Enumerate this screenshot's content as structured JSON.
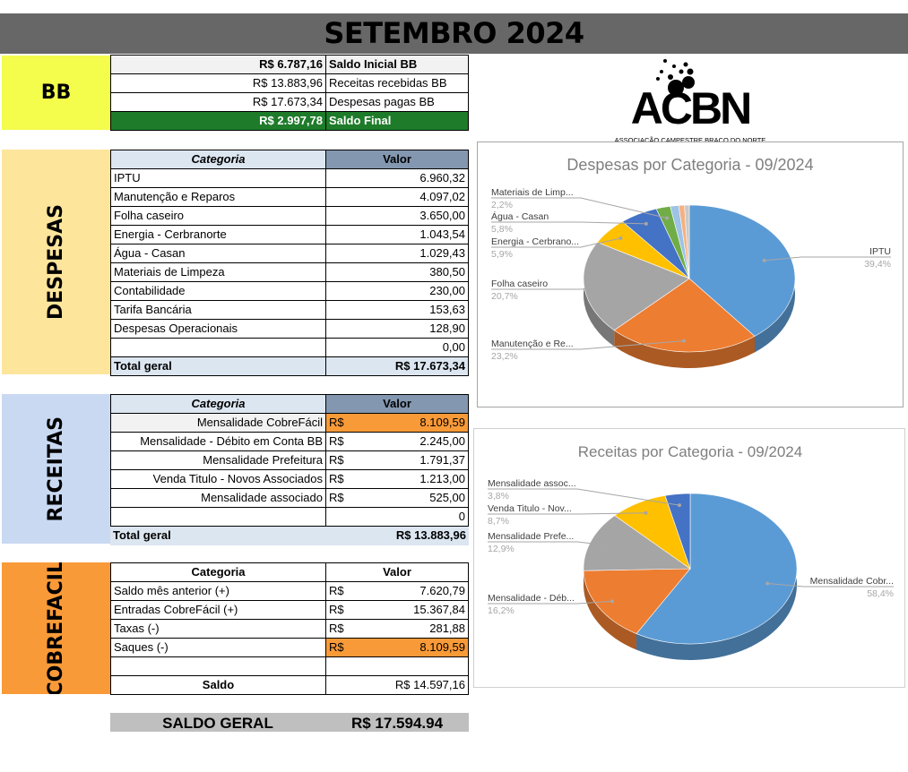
{
  "title": "SETEMBRO 2024",
  "bb": {
    "label": "BB",
    "rows": [
      {
        "value": "R$ 6.787,16",
        "label": "Saldo Inicial BB"
      },
      {
        "value": "R$ 13.883,96",
        "label": "Receitas recebidas BB"
      },
      {
        "value": "R$ 17.673,34",
        "label": "Despesas pagas BB"
      },
      {
        "value": "R$ 2.997,78",
        "label": "Saldo Final"
      }
    ]
  },
  "logo": {
    "text": "ACBN",
    "subtitle": "ASSOCIAÇÃO CAMPESTRE BRAÇO DO NORTE"
  },
  "despesas": {
    "label": "DESPESAS",
    "col_category": "Categoria",
    "col_value": "Valor",
    "rows": [
      {
        "cat": "IPTU",
        "val": "6.960,32"
      },
      {
        "cat": "Manutenção e Reparos",
        "val": "4.097,02"
      },
      {
        "cat": "Folha caseiro",
        "val": "3.650,00"
      },
      {
        "cat": "Energia - Cerbranorte",
        "val": "1.043,54"
      },
      {
        "cat": "Água - Casan",
        "val": "1.029,43"
      },
      {
        "cat": "Materiais de Limpeza",
        "val": "380,50"
      },
      {
        "cat": "Contabilidade",
        "val": "230,00"
      },
      {
        "cat": "Tarifa Bancária",
        "val": "153,63"
      },
      {
        "cat": "Despesas Operacionais",
        "val": "128,90"
      },
      {
        "cat": "",
        "val": "0,00"
      }
    ],
    "total_label": "Total geral",
    "total": "R$ 17.673,34"
  },
  "receitas": {
    "label": "RECEITAS",
    "col_category": "Categoria",
    "col_value": "Valor",
    "currency": "R$",
    "rows": [
      {
        "cat": "Mensalidade CobreFácil",
        "cur": "R$",
        "val": "8.109,59"
      },
      {
        "cat": "Mensalidade - Débito em Conta BB",
        "cur": "R$",
        "val": "2.245,00"
      },
      {
        "cat": "Mensalidade Prefeitura",
        "cur": "R$",
        "val": "1.791,37"
      },
      {
        "cat": "Venda Titulo - Novos Associados",
        "cur": "R$",
        "val": "1.213,00"
      },
      {
        "cat": "Mensalidade associado",
        "cur": "R$",
        "val": "525,00"
      },
      {
        "cat": "",
        "cur": "",
        "val": "0"
      }
    ],
    "total_label": "Total geral",
    "total": "R$ 13.883,96"
  },
  "cobrefacil": {
    "label": "COBREFACIL",
    "col_category": "Categoria",
    "col_value": "Valor",
    "rows": [
      {
        "cat": "Saldo mês anterior (+)",
        "cur": "R$",
        "val": "7.620,79"
      },
      {
        "cat": "Entradas CobreFácil (+)",
        "cur": "R$",
        "val": "15.367,84"
      },
      {
        "cat": "Taxas (-)",
        "cur": "R$",
        "val": "281,88"
      },
      {
        "cat": "Saques (-)",
        "cur": "R$",
        "val": "8.109,59"
      },
      {
        "cat": "",
        "cur": "",
        "val": ""
      }
    ],
    "saldo_label": "Saldo",
    "saldo": "R$ 14.597,16"
  },
  "saldo_geral": {
    "label": "SALDO GERAL",
    "value": "R$ 17.594.94"
  },
  "colors": {
    "bb": "#f4fc4c",
    "despesas": "#fde59c",
    "receitas": "#c9d9f2",
    "cobrefacil": "#f99a38",
    "saldo_final": "#1e7b2a",
    "title_bar": "#676767"
  },
  "chart_data": [
    {
      "type": "pie",
      "title": "Despesas por Categoria - 09/2024",
      "categories": [
        "IPTU",
        "Manutenção e Reparos",
        "Folha caseiro",
        "Energia - Cerbranorte",
        "Água - Casan",
        "Materiais de Limpeza",
        "Contabilidade",
        "Tarifa Bancária",
        "Despesas Operacionais"
      ],
      "values": [
        6960.32,
        4097.02,
        3650.0,
        1043.54,
        1029.43,
        380.5,
        230.0,
        153.63,
        128.9
      ],
      "labels": [
        {
          "name": "IPTU",
          "pct": "39,4%"
        },
        {
          "name": "Manutenção e Re...",
          "pct": "23,2%"
        },
        {
          "name": "Folha caseiro",
          "pct": "20,7%"
        },
        {
          "name": "Energia - Cerbrano...",
          "pct": "5,9%"
        },
        {
          "name": "Água - Casan",
          "pct": "5,8%"
        },
        {
          "name": "Materiais de Limp...",
          "pct": "2,2%"
        }
      ],
      "colors": [
        "#5b9bd5",
        "#ed7d31",
        "#a5a5a5",
        "#ffc000",
        "#4472c4",
        "#70ad47",
        "#9dc3e6",
        "#f4b183",
        "#c9c9c9"
      ]
    },
    {
      "type": "pie",
      "title": "Receitas por Categoria - 09/2024",
      "categories": [
        "Mensalidade CobreFácil",
        "Mensalidade - Débito em Conta BB",
        "Mensalidade Prefeitura",
        "Venda Titulo - Novos Associados",
        "Mensalidade associado"
      ],
      "values": [
        8109.59,
        2245.0,
        1791.37,
        1213.0,
        525.0
      ],
      "labels": [
        {
          "name": "Mensalidade Cobr...",
          "pct": "58,4%"
        },
        {
          "name": "Mensalidade - Déb...",
          "pct": "16,2%"
        },
        {
          "name": "Mensalidade Prefe...",
          "pct": "12,9%"
        },
        {
          "name": "Venda Titulo - Nov...",
          "pct": "8,7%"
        },
        {
          "name": "Mensalidade assoc...",
          "pct": "3,8%"
        }
      ],
      "colors": [
        "#5b9bd5",
        "#ed7d31",
        "#a5a5a5",
        "#ffc000",
        "#4472c4"
      ]
    }
  ]
}
